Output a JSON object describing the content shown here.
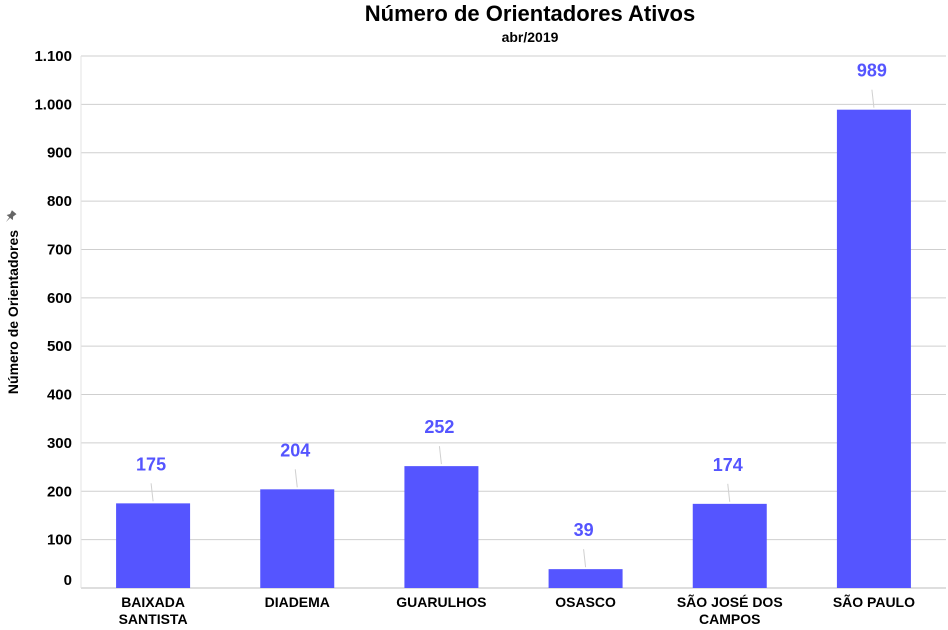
{
  "chart_data": {
    "type": "bar",
    "title": "Número de Orientadores Ativos",
    "subtitle": "abr/2019",
    "ylabel": "Número de Orientadores",
    "xlabel": "",
    "ylim": [
      0,
      1100
    ],
    "yticks": [
      0,
      100,
      200,
      300,
      400,
      500,
      600,
      700,
      800,
      900,
      1000,
      1100
    ],
    "ytick_labels": [
      "0",
      "100",
      "200",
      "300",
      "400",
      "500",
      "600",
      "700",
      "800",
      "900",
      "1.000",
      "1.100"
    ],
    "categories": [
      [
        "BAIXADA",
        "SANTISTA"
      ],
      [
        "DIADEMA"
      ],
      [
        "GUARULHOS"
      ],
      [
        "OSASCO"
      ],
      [
        "SÃO JOSÉ DOS",
        "CAMPOS"
      ],
      [
        "SÃO PAULO"
      ]
    ],
    "values": [
      175,
      204,
      252,
      39,
      174,
      989
    ],
    "data_labels": [
      "175",
      "204",
      "252",
      "39",
      "174",
      "989"
    ],
    "bar_color": "#5555ff",
    "label_color": "#5555ff",
    "grid": true,
    "legend": "none"
  }
}
